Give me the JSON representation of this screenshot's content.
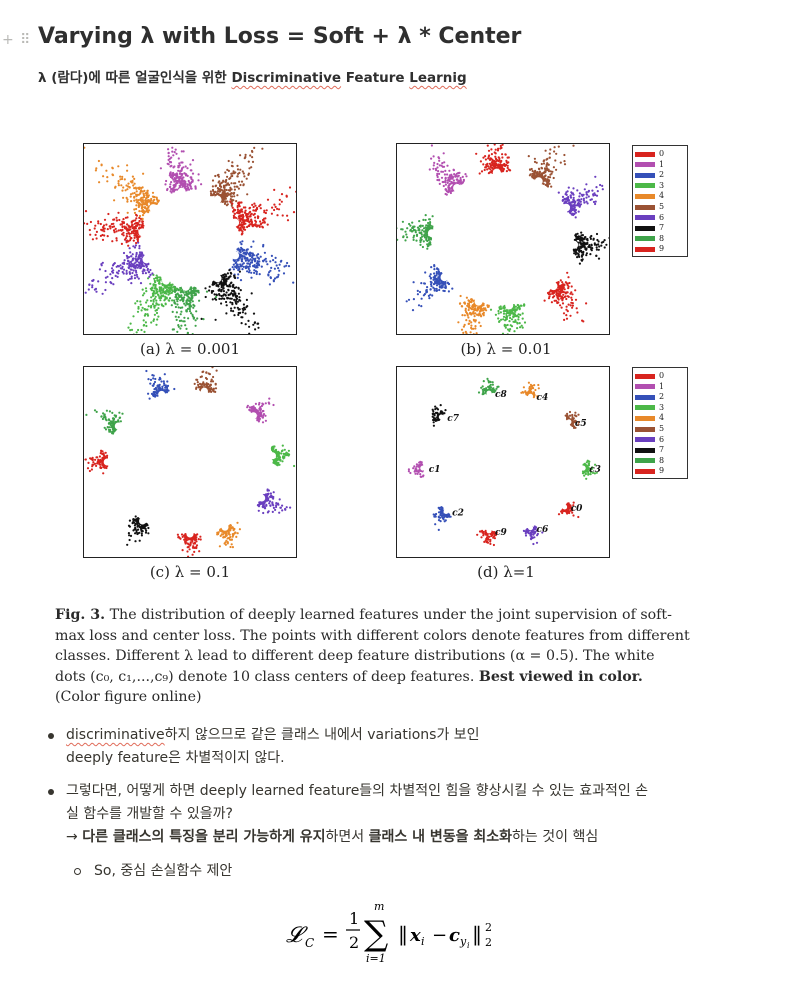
{
  "page": {
    "title": "Varying λ with Loss = Soft + λ * Center",
    "subtitle_prefix": "λ (람다)에 따른 얼굴인식을 위한 ",
    "subtitle_link": "Discriminative",
    "subtitle_mid": " Feature ",
    "subtitle_underlined": "Learnig"
  },
  "figure": {
    "panels": [
      {
        "label": "(a) λ = 0.001"
      },
      {
        "label": "(b) λ = 0.01"
      },
      {
        "label": "(c) λ = 0.1"
      },
      {
        "label": "(d) λ=1"
      }
    ],
    "legend": [
      "0",
      "1",
      "2",
      "3",
      "4",
      "5",
      "6",
      "7",
      "8",
      "9"
    ],
    "class_colors": [
      "#d8241f",
      "#b24fb0",
      "#3550b8",
      "#4cb848",
      "#e8892a",
      "#9a5234",
      "#6a3fbf",
      "#111111",
      "#3fa34a",
      "#d8241f"
    ],
    "center_labels": [
      "c0",
      "c1",
      "c2",
      "c3",
      "c4",
      "c5",
      "c6",
      "c7",
      "c8",
      "c9"
    ],
    "caption_lines": [
      {
        "b": "Fig. 3.",
        "t": " The distribution of deeply learned features under the joint supervision of soft-"
      },
      {
        "t": "max loss and center loss. The points with different colors denote features from different"
      },
      {
        "t": "classes. Different λ lead to different deep feature distributions (α = 0.5). The white"
      },
      {
        "t": "dots (c₀, c₁,...,c₉) denote 10 class centers of deep features. ",
        "b2": "Best viewed in color."
      },
      {
        "t": "(Color figure online)"
      }
    ]
  },
  "bullets": [
    {
      "lines": [
        "discriminative하지 않으므로 같은 클래스 내에서 variations가 보인",
        "deeply feature은 차별적이지 않다."
      ]
    },
    {
      "lines": [
        "그렇다면, 어떻게 하면 deeply learned feature들의 차별적인 힘을 향상시킬 수 있는 효과적인 손",
        "실 함수를 개발할 수 있을까?"
      ],
      "arrow_prefix": "→ ",
      "arrow_bold1": "다른 클래스의 특징을 분리 가능하게 유지",
      "arrow_mid": "하면서 ",
      "arrow_bold2": "클래스 내 변동을 최소화",
      "arrow_suffix": "하는 것이 핵심"
    }
  ],
  "sub_bullet": "So, 중심 손실함수 제안",
  "formula": {
    "lhs": "𝓛",
    "lhs_sub": "C",
    "eq": "=",
    "num": "1",
    "den": "2",
    "top": "m",
    "bottom": "i=1",
    "x": "x",
    "xsub": "i",
    "c": "c",
    "csub": "y",
    "csubsub": "i",
    "minus": "−",
    "pow": "2",
    "norm_sub": "2"
  }
}
